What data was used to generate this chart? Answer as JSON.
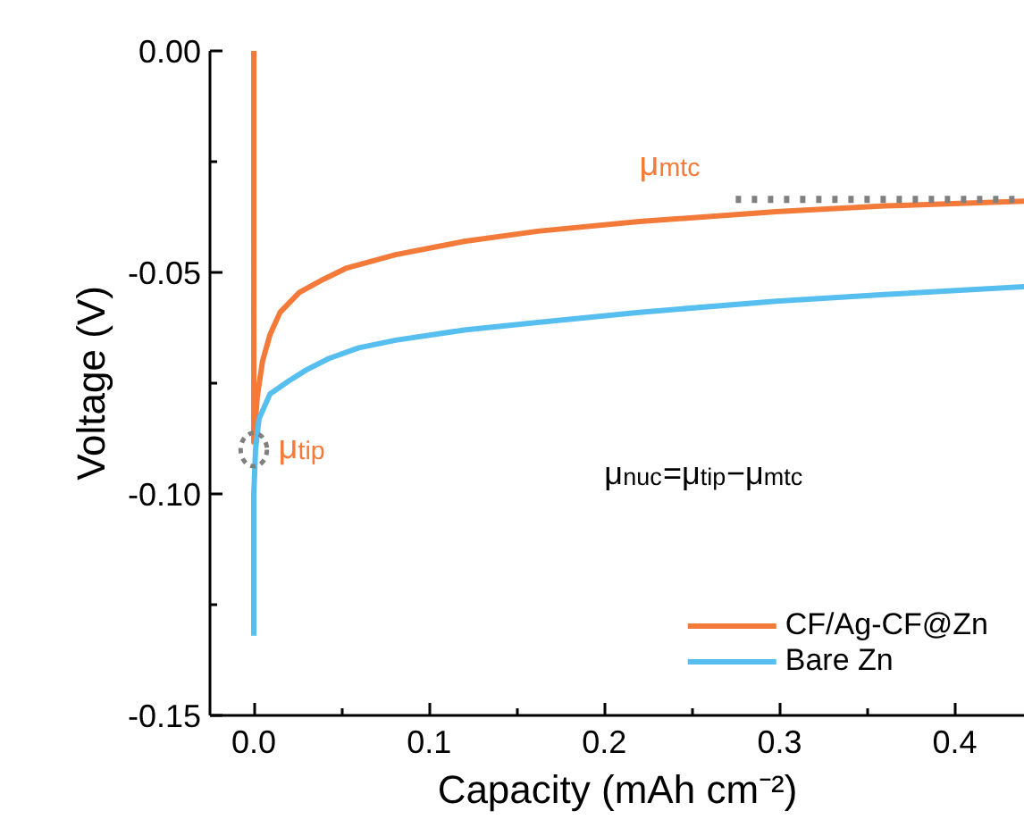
{
  "chart_data": {
    "type": "line",
    "xlabel": "Capacity (mAh cm⁻²)",
    "ylabel": "Voltage (V)",
    "xlim": [
      -0.025,
      0.44
    ],
    "ylim": [
      -0.15,
      0.0
    ],
    "xticks": [
      {
        "value": 0.0,
        "label": "0.0"
      },
      {
        "value": 0.1,
        "label": "0.1"
      },
      {
        "value": 0.2,
        "label": "0.2"
      },
      {
        "value": 0.3,
        "label": "0.3"
      },
      {
        "value": 0.4,
        "label": "0.4"
      }
    ],
    "yticks": [
      {
        "value": 0.0,
        "label": "0.00"
      },
      {
        "value": -0.05,
        "label": "-0.05"
      },
      {
        "value": -0.1,
        "label": "-0.10"
      },
      {
        "value": -0.15,
        "label": "-0.15"
      }
    ],
    "grid": false,
    "legend": "bottom right",
    "line_style": "solid",
    "marker": "none",
    "series": [
      {
        "name": "CF/Ag-CF@Zn",
        "color": "#f47a3a",
        "x": [
          0.0,
          0.0,
          0.002,
          0.005,
          0.0093,
          0.015,
          0.026,
          0.04,
          0.053,
          0.081,
          0.12,
          0.162,
          0.22,
          0.298,
          0.36,
          0.44
        ],
        "values": [
          0.0,
          -0.0883,
          -0.078,
          -0.07,
          -0.064,
          -0.059,
          -0.0545,
          -0.0515,
          -0.049,
          -0.046,
          -0.043,
          -0.0407,
          -0.0385,
          -0.0363,
          -0.035,
          -0.0339
        ]
      },
      {
        "name": "Bare Zn",
        "color": "#56bff0",
        "x": [
          0.0,
          0.0,
          0.001,
          0.003,
          0.0093,
          0.0196,
          0.03,
          0.043,
          0.06,
          0.081,
          0.12,
          0.162,
          0.22,
          0.298,
          0.36,
          0.44
        ],
        "values": [
          -0.132,
          -0.1,
          -0.09,
          -0.083,
          -0.0774,
          -0.0746,
          -0.072,
          -0.0694,
          -0.067,
          -0.0653,
          -0.063,
          -0.0613,
          -0.059,
          -0.0565,
          -0.055,
          -0.0532
        ]
      },
      {
        "type": "line",
        "color": "#808080",
        "line_style": "dotted",
        "x": [
          0.275,
          0.44
        ],
        "values": [
          -0.0335,
          -0.0335
        ]
      }
    ],
    "annotations": [
      "μ$_{mtc}$",
      "μ$_{tip}$",
      "μ$_{nuc}$=μ$_{tip}$−μ$_{mtc}$"
    ]
  }
}
